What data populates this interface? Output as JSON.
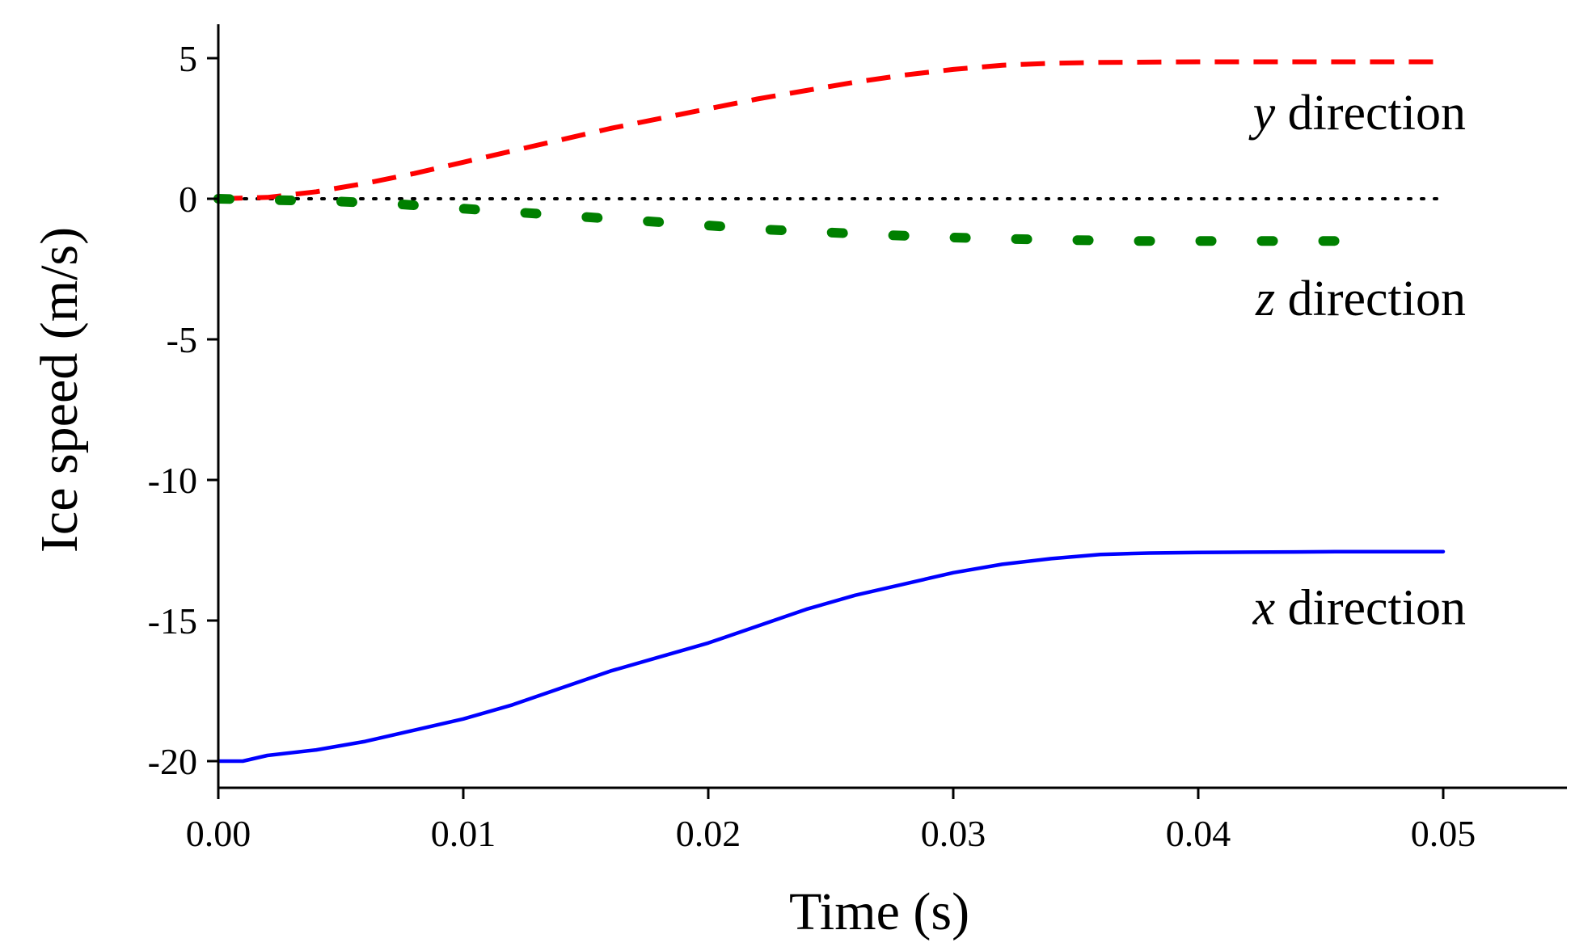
{
  "chart_data": {
    "type": "line",
    "title": "",
    "xlabel": "Time (s)",
    "ylabel": "Ice speed (m/s)",
    "xlim": [
      0,
      0.055
    ],
    "ylim": [
      -21,
      6.5
    ],
    "x_ticks": [
      0.0,
      0.01,
      0.02,
      0.03,
      0.04,
      0.05
    ],
    "x_tick_labels": [
      "0.00",
      "0.01",
      "0.02",
      "0.03",
      "0.04",
      "0.05"
    ],
    "y_ticks": [
      5,
      0,
      -5,
      -10,
      -15,
      -20
    ],
    "y_tick_labels": [
      "5",
      "0",
      "-5",
      "-10",
      "-15",
      "-20"
    ],
    "grid": false,
    "legend": "none",
    "series": [
      {
        "name": "x direction",
        "color": "#0000ff",
        "style": "solid",
        "x": [
          0.0,
          0.001,
          0.002,
          0.004,
          0.006,
          0.008,
          0.01,
          0.012,
          0.014,
          0.016,
          0.018,
          0.02,
          0.022,
          0.024,
          0.026,
          0.028,
          0.03,
          0.032,
          0.034,
          0.036,
          0.038,
          0.04,
          0.042,
          0.044,
          0.046,
          0.048,
          0.05
        ],
        "values": [
          -20.0,
          -20.0,
          -19.8,
          -19.6,
          -19.3,
          -18.9,
          -18.5,
          -18.0,
          -17.4,
          -16.8,
          -16.3,
          -15.8,
          -15.2,
          -14.6,
          -14.1,
          -13.7,
          -13.3,
          -13.0,
          -12.8,
          -12.65,
          -12.6,
          -12.58,
          -12.57,
          -12.56,
          -12.55,
          -12.55,
          -12.55
        ]
      },
      {
        "name": "y direction",
        "color": "#ff0000",
        "style": "dashed",
        "x": [
          0.0,
          0.002,
          0.004,
          0.006,
          0.008,
          0.01,
          0.012,
          0.014,
          0.016,
          0.018,
          0.02,
          0.022,
          0.024,
          0.026,
          0.028,
          0.03,
          0.032,
          0.034,
          0.036,
          0.038,
          0.04,
          0.042,
          0.044,
          0.046,
          0.048,
          0.05
        ],
        "values": [
          0.0,
          0.05,
          0.25,
          0.55,
          0.9,
          1.3,
          1.7,
          2.1,
          2.5,
          2.85,
          3.2,
          3.55,
          3.85,
          4.15,
          4.4,
          4.6,
          4.75,
          4.82,
          4.85,
          4.86,
          4.87,
          4.87,
          4.87,
          4.87,
          4.87,
          4.87
        ]
      },
      {
        "name": "z direction",
        "color": "#008000",
        "style": "dotted",
        "x": [
          0.0,
          0.0025,
          0.005,
          0.0075,
          0.01,
          0.0125,
          0.015,
          0.0175,
          0.02,
          0.0225,
          0.025,
          0.0275,
          0.03,
          0.0325,
          0.035,
          0.0375,
          0.04,
          0.0425,
          0.045,
          0.0475
        ],
        "values": [
          0.0,
          -0.05,
          -0.1,
          -0.2,
          -0.35,
          -0.5,
          -0.65,
          -0.8,
          -0.95,
          -1.1,
          -1.2,
          -1.3,
          -1.38,
          -1.43,
          -1.47,
          -1.5,
          -1.5,
          -1.5,
          -1.5,
          -1.5
        ]
      },
      {
        "name": "zero reference",
        "color": "#000000",
        "style": "dotted-thin",
        "x": [
          0.0,
          0.05
        ],
        "values": [
          0.0,
          0.0
        ]
      }
    ],
    "annotations": [
      {
        "var": "y",
        "text": " direction",
        "x": 0.05,
        "y": 3.1
      },
      {
        "var": "z",
        "text": " direction",
        "x": 0.05,
        "y": -3.5
      },
      {
        "var": "x",
        "text": " direction",
        "x": 0.05,
        "y": -14.5
      }
    ]
  }
}
